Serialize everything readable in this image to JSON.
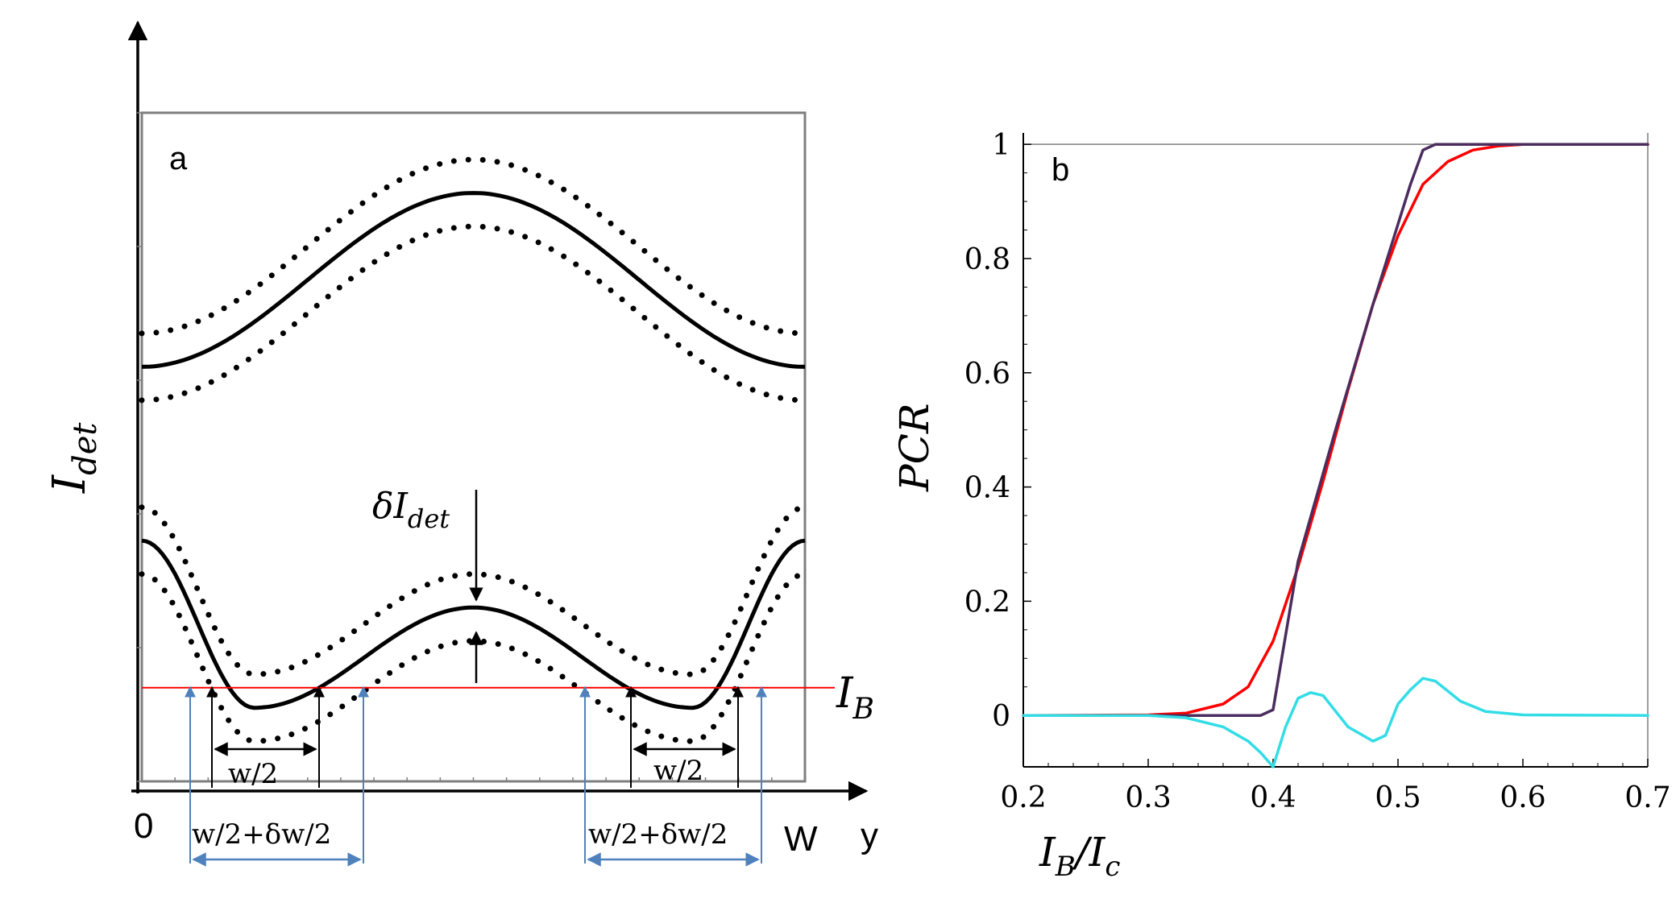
{
  "chart_data": [
    {
      "type": "line",
      "panel": "a",
      "ylabel_main": "I",
      "ylabel_sub": "det",
      "xlabel": "y",
      "x_origin_label": "0",
      "x_end_label": "W",
      "axis_ranges": {
        "x": [
          0,
          1
        ],
        "y": [
          0,
          1
        ]
      },
      "series": [
        {
          "name": "upper-solid",
          "style": "solid",
          "x": [
            0,
            0.5,
            1
          ],
          "y": [
            0.62,
            0.88,
            0.62
          ]
        },
        {
          "name": "upper-dotted-plus",
          "style": "dotted",
          "x": [
            0,
            0.5,
            1
          ],
          "y": [
            0.67,
            0.93,
            0.67
          ]
        },
        {
          "name": "upper-dotted-minus",
          "style": "dotted",
          "x": [
            0,
            0.5,
            1
          ],
          "y": [
            0.57,
            0.83,
            0.57
          ]
        },
        {
          "name": "lower-solid",
          "style": "solid",
          "x": [
            0,
            0.17,
            0.5,
            0.83,
            1
          ],
          "y": [
            0.36,
            0.11,
            0.26,
            0.11,
            0.36
          ]
        },
        {
          "name": "lower-dotted-plus",
          "style": "dotted",
          "x": [
            0,
            0.17,
            0.5,
            0.83,
            1
          ],
          "y": [
            0.41,
            0.16,
            0.31,
            0.16,
            0.41
          ]
        },
        {
          "name": "lower-dotted-minus",
          "style": "dotted",
          "x": [
            0,
            0.17,
            0.5,
            0.83,
            1
          ],
          "y": [
            0.31,
            0.06,
            0.21,
            0.06,
            0.31
          ]
        }
      ],
      "bias_level": {
        "y": 0.14,
        "label_main": "I",
        "label_sub": "B",
        "color": "#ff0000"
      },
      "annotations": {
        "delta_label_prefix": "δI",
        "delta_label_sub": "det",
        "w_half_left": "w/2",
        "w_half_right": "w/2",
        "w_dw_left": "w/2+δw/2",
        "w_dw_right": "w/2+δw/2"
      },
      "arrow_color": "#4f81bd"
    },
    {
      "type": "line",
      "panel": "b",
      "ylabel": "PCR",
      "xlabel_main": "I",
      "xlabel_sub1": "B",
      "xlabel_sep": "/I",
      "xlabel_sub2": "c",
      "xlim": [
        0.2,
        0.7
      ],
      "ylim": [
        -0.09,
        1.02
      ],
      "xticks": [
        "0.2",
        "0.3",
        "0.4",
        "0.5",
        "0.6",
        "0.7"
      ],
      "yticks": [
        "0",
        "0.2",
        "0.4",
        "0.6",
        "0.8",
        "1"
      ],
      "series": [
        {
          "name": "red-smooth",
          "color": "#ff0000",
          "x": [
            0.2,
            0.3,
            0.33,
            0.36,
            0.38,
            0.4,
            0.42,
            0.44,
            0.46,
            0.48,
            0.5,
            0.52,
            0.54,
            0.56,
            0.58,
            0.6,
            0.65,
            0.7
          ],
          "y": [
            0,
            0.001,
            0.004,
            0.02,
            0.05,
            0.13,
            0.26,
            0.41,
            0.57,
            0.72,
            0.84,
            0.93,
            0.97,
            0.99,
            0.997,
            1,
            1,
            1
          ]
        },
        {
          "name": "purple-piecewise",
          "color": "#4b2c5e",
          "x": [
            0.2,
            0.32,
            0.39,
            0.4,
            0.42,
            0.45,
            0.48,
            0.5,
            0.51,
            0.52,
            0.53,
            0.6,
            0.7
          ],
          "y": [
            0,
            0,
            0,
            0.01,
            0.27,
            0.5,
            0.72,
            0.86,
            0.93,
            0.99,
            1,
            1,
            1
          ]
        },
        {
          "name": "cyan-difference",
          "color": "#33dde6",
          "x": [
            0.2,
            0.3,
            0.33,
            0.36,
            0.38,
            0.39,
            0.4,
            0.41,
            0.42,
            0.43,
            0.44,
            0.46,
            0.48,
            0.49,
            0.5,
            0.51,
            0.52,
            0.53,
            0.55,
            0.57,
            0.6,
            0.7
          ],
          "y": [
            0,
            0,
            -0.004,
            -0.02,
            -0.045,
            -0.065,
            -0.09,
            -0.02,
            0.03,
            0.04,
            0.035,
            -0.02,
            -0.045,
            -0.035,
            0.02,
            0.045,
            0.065,
            0.06,
            0.025,
            0.007,
            0.001,
            0
          ]
        }
      ]
    }
  ],
  "panel_labels": {
    "a": "a",
    "b": "b"
  }
}
